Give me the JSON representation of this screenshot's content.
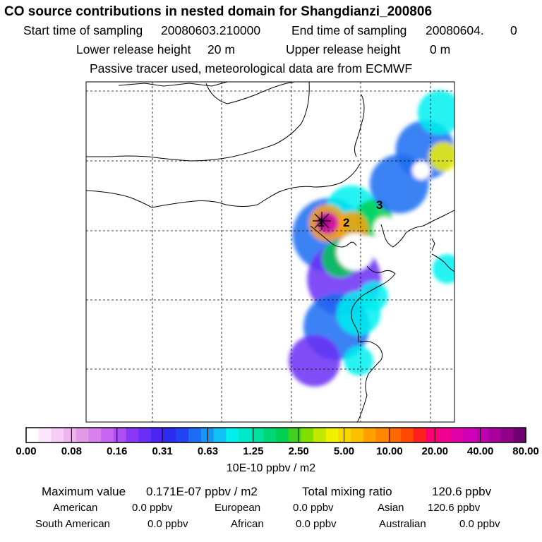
{
  "chart_data": {
    "type": "heatmap",
    "title": "CO  source contributions in nested domain for Shangdianzi_200806",
    "start_label": "Start time of sampling",
    "start_value": "20080603.210000",
    "end_label": "End time of sampling",
    "end_value": "20080604.",
    "end_suffix": "0",
    "lower_label": "Lower release height",
    "lower_value": "20 m",
    "upper_label": "Upper release height",
    "upper_value": "0 m",
    "note": "Passive tracer used, meteorological data are from ECMWF",
    "colorbar": {
      "ticks": [
        "0.00",
        "0.08",
        "0.16",
        "0.31",
        "0.63",
        "1.25",
        "2.50",
        "5.00",
        "10.00",
        "20.00",
        "40.00",
        "80.00"
      ],
      "colors": [
        "#ffffff",
        "#fbe6fb",
        "#f5cdf5",
        "#eeb4ee",
        "#e39be8",
        "#d880ee",
        "#c864f2",
        "#b04ef5",
        "#8a38f7",
        "#6a2ef5",
        "#4a24f2",
        "#2c2cef",
        "#2244f0",
        "#1a6cf2",
        "#1896f3",
        "#10c0f6",
        "#00f0f0",
        "#00e8c8",
        "#00e0a0",
        "#00d878",
        "#00d050",
        "#40d020",
        "#80e000",
        "#c0e800",
        "#f0f000",
        "#f8d800",
        "#fcc000",
        "#ffa000",
        "#ff8800",
        "#ff6a00",
        "#ff4800",
        "#ff2020",
        "#ff0070",
        "#f00090",
        "#e000a8",
        "#d000b8",
        "#c000b0",
        "#a8009c",
        "#900088",
        "#700070"
      ],
      "units": "10E-10 ppbv / m2"
    },
    "markers": [
      "1",
      "2",
      "3"
    ],
    "blobs": [
      {
        "x": 0.66,
        "y": 0.45,
        "r": 0.1,
        "level": 4
      },
      {
        "x": 0.7,
        "y": 0.58,
        "r": 0.1,
        "level": 3
      },
      {
        "x": 0.68,
        "y": 0.72,
        "r": 0.09,
        "level": 4
      },
      {
        "x": 0.62,
        "y": 0.82,
        "r": 0.07,
        "level": 3
      },
      {
        "x": 0.74,
        "y": 0.68,
        "r": 0.06,
        "level": 5
      },
      {
        "x": 0.72,
        "y": 0.38,
        "r": 0.07,
        "level": 5
      },
      {
        "x": 0.78,
        "y": 0.4,
        "r": 0.05,
        "level": 6
      },
      {
        "x": 0.85,
        "y": 0.3,
        "r": 0.08,
        "level": 4
      },
      {
        "x": 0.92,
        "y": 0.2,
        "r": 0.08,
        "level": 4
      },
      {
        "x": 0.96,
        "y": 0.09,
        "r": 0.06,
        "level": 5
      },
      {
        "x": 0.97,
        "y": 0.22,
        "r": 0.04,
        "level": 7
      },
      {
        "x": 0.69,
        "y": 0.52,
        "r": 0.05,
        "level": 6
      },
      {
        "x": 0.78,
        "y": 0.63,
        "r": 0.04,
        "level": 5
      },
      {
        "x": 0.74,
        "y": 0.82,
        "r": 0.04,
        "level": 5
      },
      {
        "x": 0.98,
        "y": 0.55,
        "r": 0.04,
        "level": 5
      },
      {
        "x": 0.72,
        "y": 0.43,
        "r": 0.045,
        "level": 8
      },
      {
        "x": 0.655,
        "y": 0.415,
        "r": 0.05,
        "level": 8
      },
      {
        "x": 0.655,
        "y": 0.415,
        "r": 0.03,
        "level": 10
      },
      {
        "x": 0.645,
        "y": 0.41,
        "r": 0.015,
        "level": 11
      }
    ],
    "holes": [
      {
        "x": 0.73,
        "y": 0.5,
        "r": 0.05
      },
      {
        "x": 0.91,
        "y": 0.26,
        "r": 0.025
      },
      {
        "x": 0.81,
        "y": 0.43,
        "r": 0.03
      }
    ],
    "stats": {
      "max_label": "Maximum value",
      "max_value": "0.171E-07 ppbv / m2",
      "total_label": "Total mixing ratio",
      "total_value": "120.6 ppbv",
      "regions": [
        {
          "name": "American",
          "value": "0.0 ppbv"
        },
        {
          "name": "European",
          "value": "0.0 ppbv"
        },
        {
          "name": "Asian",
          "value": "120.6 ppbv"
        },
        {
          "name": "South American",
          "value": "0.0 ppbv"
        },
        {
          "name": "African",
          "value": "0.0 ppbv"
        },
        {
          "name": "Australian",
          "value": "0.0 ppbv"
        }
      ]
    }
  }
}
